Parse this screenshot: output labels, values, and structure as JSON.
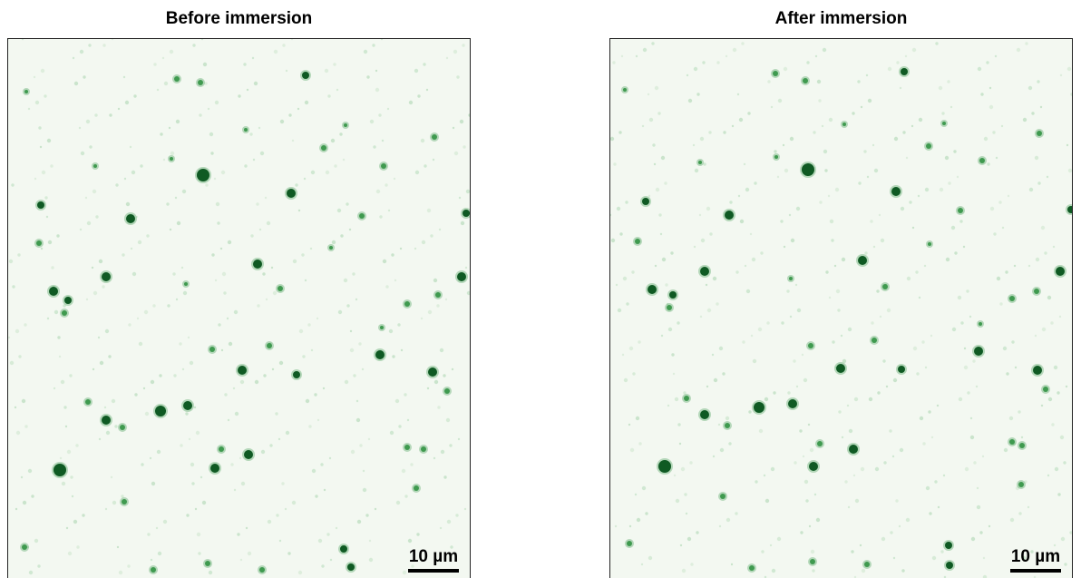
{
  "panels": [
    {
      "title": "Before immersion",
      "scalebar_label": "10 µm"
    },
    {
      "title": "After immersion",
      "scalebar_label": "10 µm"
    }
  ],
  "colors": {
    "background": "#f3f8f1",
    "particle_dark": "#0f5a23",
    "particle_mid": "#3f9a4f",
    "particle_light": "#9fd0a5"
  }
}
